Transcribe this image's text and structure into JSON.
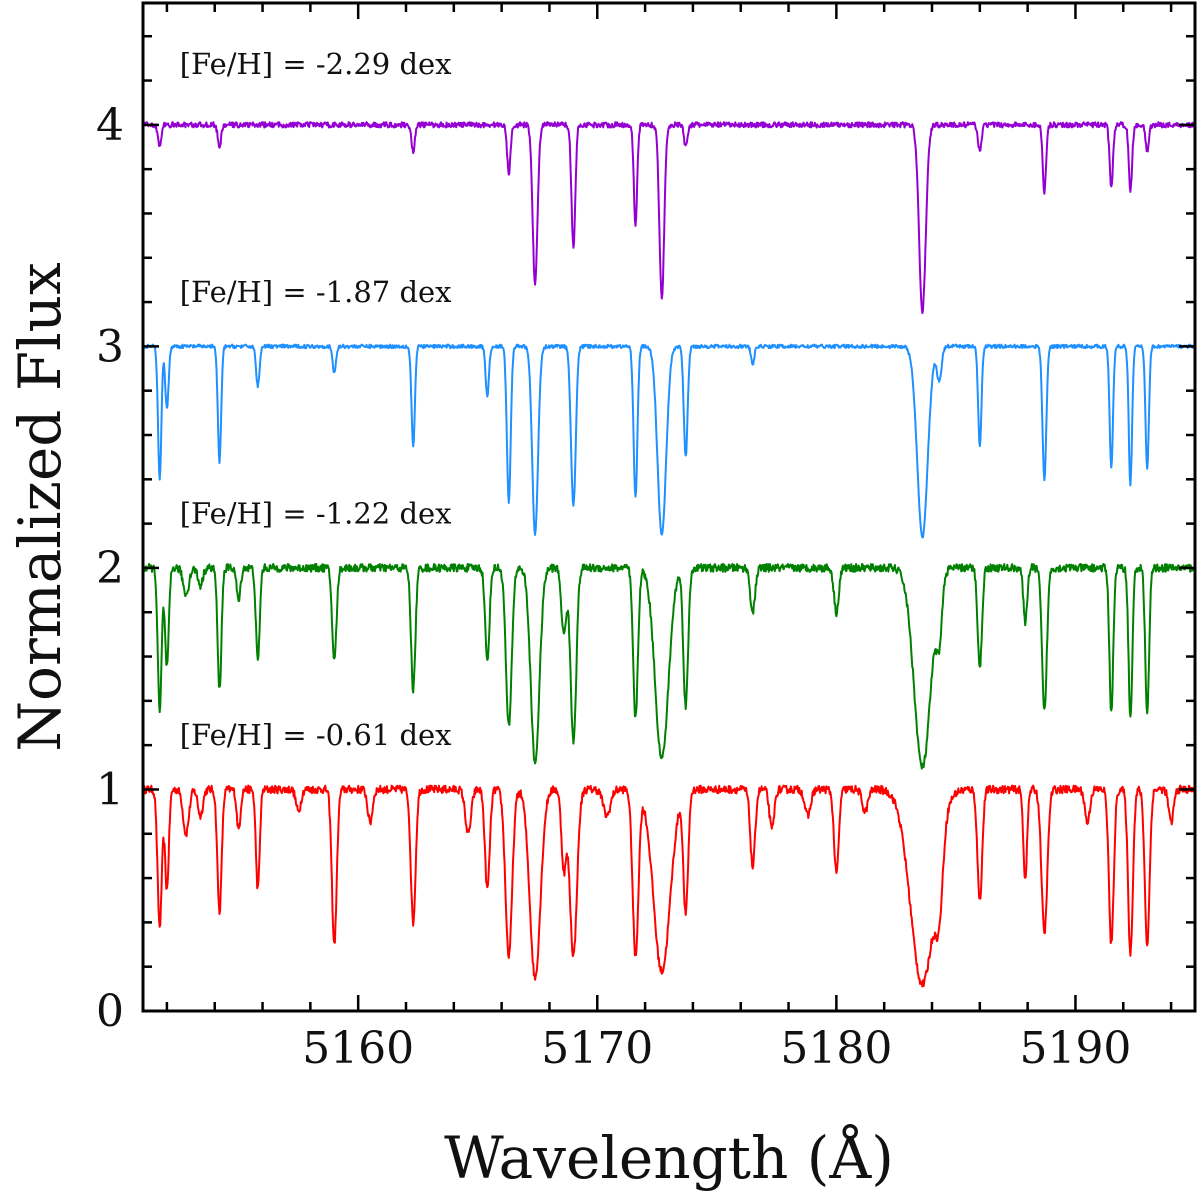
{
  "chart_data": {
    "type": "line",
    "title": "",
    "xlabel": "Wavelength (Å)",
    "ylabel": "Normalized Flux",
    "xlim": [
      5151,
      5195
    ],
    "ylim": [
      0,
      4.55
    ],
    "x_ticks": [
      5160,
      5170,
      5180,
      5190
    ],
    "y_ticks": [
      0,
      1,
      2,
      3,
      4
    ],
    "x_minor_step": 2,
    "y_minor_step": 0.2,
    "grid": false,
    "legend": "none",
    "series": [
      {
        "name": "[Fe/H] = -0.61 dex",
        "offset": 0,
        "color": "#ff0000",
        "noise": 0.018,
        "lines": [
          [
            5151.7,
            0.62,
            0.09
          ],
          [
            5152.0,
            0.45,
            0.08
          ],
          [
            5152.8,
            0.2,
            0.12
          ],
          [
            5153.4,
            0.12,
            0.1
          ],
          [
            5154.2,
            0.55,
            0.09
          ],
          [
            5155.0,
            0.18,
            0.08
          ],
          [
            5155.8,
            0.45,
            0.08
          ],
          [
            5157.5,
            0.1,
            0.1
          ],
          [
            5159.0,
            0.7,
            0.1
          ],
          [
            5160.5,
            0.15,
            0.1
          ],
          [
            5162.3,
            0.6,
            0.1
          ],
          [
            5164.6,
            0.2,
            0.12
          ],
          [
            5165.4,
            0.45,
            0.1
          ],
          [
            5166.3,
            0.75,
            0.14
          ],
          [
            5167.4,
            0.85,
            0.22
          ],
          [
            5168.6,
            0.35,
            0.1
          ],
          [
            5169.0,
            0.75,
            0.15
          ],
          [
            5170.4,
            0.12,
            0.15
          ],
          [
            5171.6,
            0.75,
            0.12
          ],
          [
            5172.7,
            0.82,
            0.35
          ],
          [
            5173.7,
            0.55,
            0.1
          ],
          [
            5176.5,
            0.35,
            0.1
          ],
          [
            5177.3,
            0.18,
            0.1
          ],
          [
            5178.8,
            0.12,
            0.12
          ],
          [
            5180.0,
            0.38,
            0.1
          ],
          [
            5181.2,
            0.1,
            0.12
          ],
          [
            5183.6,
            0.88,
            0.5
          ],
          [
            5184.3,
            0.3,
            0.15
          ],
          [
            5186.0,
            0.5,
            0.1
          ],
          [
            5187.9,
            0.4,
            0.08
          ],
          [
            5188.7,
            0.65,
            0.12
          ],
          [
            5190.5,
            0.15,
            0.1
          ],
          [
            5191.5,
            0.7,
            0.1
          ],
          [
            5192.3,
            0.74,
            0.1
          ],
          [
            5193.0,
            0.7,
            0.1
          ],
          [
            5194.0,
            0.15,
            0.1
          ]
        ]
      },
      {
        "name": "[Fe/H] = -1.22 dex",
        "offset": 1,
        "color": "#008000",
        "noise": 0.018,
        "lines": [
          [
            5151.7,
            0.65,
            0.08
          ],
          [
            5152.0,
            0.45,
            0.08
          ],
          [
            5152.8,
            0.12,
            0.12
          ],
          [
            5153.4,
            0.08,
            0.1
          ],
          [
            5154.2,
            0.55,
            0.08
          ],
          [
            5155.0,
            0.15,
            0.08
          ],
          [
            5155.8,
            0.42,
            0.08
          ],
          [
            5159.0,
            0.42,
            0.09
          ],
          [
            5162.3,
            0.55,
            0.09
          ],
          [
            5165.4,
            0.42,
            0.09
          ],
          [
            5166.3,
            0.72,
            0.12
          ],
          [
            5167.4,
            0.88,
            0.18
          ],
          [
            5168.6,
            0.3,
            0.1
          ],
          [
            5169.0,
            0.78,
            0.12
          ],
          [
            5171.6,
            0.68,
            0.1
          ],
          [
            5172.7,
            0.86,
            0.28
          ],
          [
            5173.7,
            0.62,
            0.1
          ],
          [
            5176.5,
            0.2,
            0.1
          ],
          [
            5180.0,
            0.2,
            0.1
          ],
          [
            5183.6,
            0.9,
            0.35
          ],
          [
            5184.3,
            0.25,
            0.12
          ],
          [
            5186.0,
            0.45,
            0.09
          ],
          [
            5187.9,
            0.25,
            0.08
          ],
          [
            5188.7,
            0.65,
            0.1
          ],
          [
            5191.5,
            0.65,
            0.08
          ],
          [
            5192.3,
            0.68,
            0.08
          ],
          [
            5193.0,
            0.66,
            0.08
          ]
        ]
      },
      {
        "name": "[Fe/H] = -1.87 dex",
        "offset": 2,
        "color": "#1e90ff",
        "noise": 0.008,
        "lines": [
          [
            5151.7,
            0.6,
            0.07
          ],
          [
            5152.0,
            0.28,
            0.07
          ],
          [
            5154.2,
            0.52,
            0.07
          ],
          [
            5155.8,
            0.18,
            0.07
          ],
          [
            5159.0,
            0.12,
            0.07
          ],
          [
            5162.3,
            0.45,
            0.07
          ],
          [
            5165.4,
            0.22,
            0.07
          ],
          [
            5166.3,
            0.7,
            0.08
          ],
          [
            5167.4,
            0.85,
            0.12
          ],
          [
            5169.0,
            0.72,
            0.1
          ],
          [
            5171.6,
            0.68,
            0.08
          ],
          [
            5172.7,
            0.85,
            0.18
          ],
          [
            5173.7,
            0.5,
            0.08
          ],
          [
            5176.5,
            0.08,
            0.07
          ],
          [
            5183.6,
            0.86,
            0.22
          ],
          [
            5184.3,
            0.15,
            0.1
          ],
          [
            5186.0,
            0.45,
            0.07
          ],
          [
            5188.7,
            0.6,
            0.08
          ],
          [
            5191.5,
            0.55,
            0.07
          ],
          [
            5192.3,
            0.62,
            0.07
          ],
          [
            5193.0,
            0.55,
            0.07
          ]
        ]
      },
      {
        "name": "[Fe/H] = -2.29 dex",
        "offset": 3,
        "color": "#9400d3",
        "noise": 0.012,
        "lines": [
          [
            5151.7,
            0.1,
            0.07
          ],
          [
            5154.2,
            0.1,
            0.07
          ],
          [
            5162.3,
            0.12,
            0.07
          ],
          [
            5166.3,
            0.22,
            0.07
          ],
          [
            5167.4,
            0.72,
            0.1
          ],
          [
            5169.0,
            0.55,
            0.08
          ],
          [
            5171.6,
            0.45,
            0.07
          ],
          [
            5172.7,
            0.78,
            0.1
          ],
          [
            5173.7,
            0.1,
            0.07
          ],
          [
            5183.6,
            0.84,
            0.14
          ],
          [
            5186.0,
            0.12,
            0.07
          ],
          [
            5188.7,
            0.3,
            0.07
          ],
          [
            5191.5,
            0.28,
            0.07
          ],
          [
            5192.3,
            0.3,
            0.07
          ],
          [
            5193.0,
            0.12,
            0.07
          ]
        ]
      }
    ],
    "annotations": [
      {
        "text": "[Fe/H] = -2.29 dex",
        "x": 5151.7,
        "y": 4.23
      },
      {
        "text": "[Fe/H] = -1.87 dex",
        "x": 5151.7,
        "y": 3.2
      },
      {
        "text": "[Fe/H] = -1.22 dex",
        "x": 5151.7,
        "y": 2.2
      },
      {
        "text": "[Fe/H] = -0.61 dex",
        "x": 5151.7,
        "y": 1.2
      }
    ]
  }
}
